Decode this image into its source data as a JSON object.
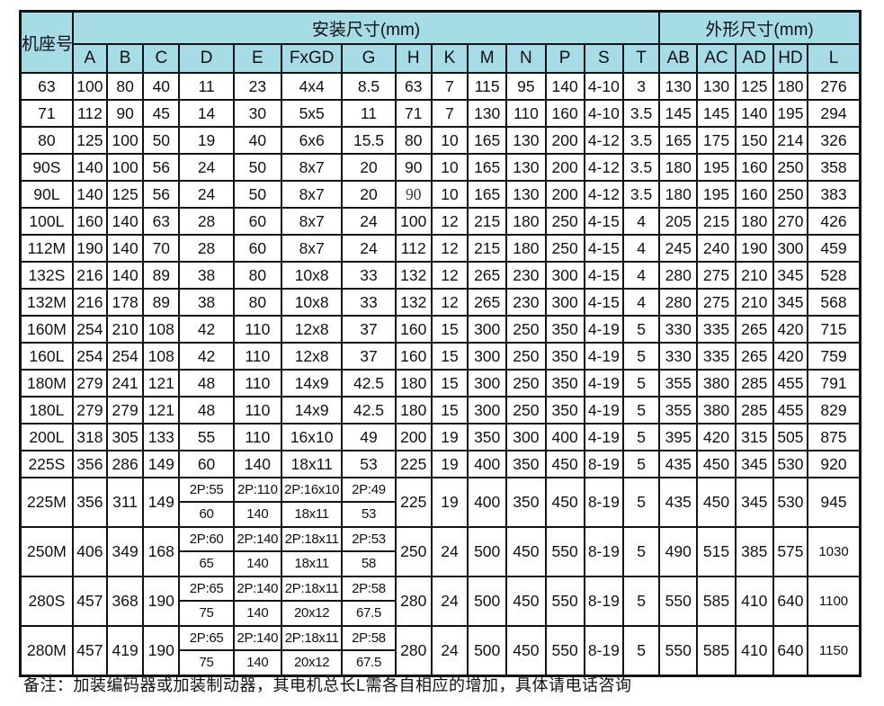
{
  "colors": {
    "header_bg": "#a6dce5",
    "grid_line": "#101417",
    "page_bg": "#ffffff",
    "text": "#111111"
  },
  "table": {
    "corner_label": "机座号",
    "groups": [
      {
        "label": "安装尺寸(mm)",
        "span": 14
      },
      {
        "label": "外形尺寸(mm)",
        "span": 5
      }
    ],
    "columns": [
      "A",
      "B",
      "C",
      "D",
      "E",
      "FxGD",
      "G",
      "H",
      "K",
      "M",
      "N",
      "P",
      "S",
      "T",
      "AB",
      "AC",
      "AD",
      "HD",
      "L"
    ],
    "rows": [
      {
        "frame": "63",
        "cells": [
          "100",
          "80",
          "40",
          "11",
          "23",
          "4x4",
          "8.5",
          "63",
          "7",
          "115",
          "95",
          "140",
          "4-10",
          "3",
          "130",
          "130",
          "125",
          "180",
          "276"
        ]
      },
      {
        "frame": "71",
        "cells": [
          "112",
          "90",
          "45",
          "14",
          "30",
          "5x5",
          "11",
          "71",
          "7",
          "130",
          "110",
          "160",
          "4-10",
          "3.5",
          "145",
          "145",
          "140",
          "195",
          "294"
        ]
      },
      {
        "frame": "80",
        "cells": [
          "125",
          "100",
          "50",
          "19",
          "40",
          "6x6",
          "15.5",
          "80",
          "10",
          "165",
          "130",
          "200",
          "4-12",
          "3.5",
          "165",
          "175",
          "150",
          "214",
          "326"
        ]
      },
      {
        "frame": "90S",
        "cells": [
          "140",
          "100",
          "56",
          "24",
          "50",
          "8x7",
          "20",
          "90",
          "10",
          "165",
          "130",
          "200",
          "4-12",
          "3.5",
          "180",
          "195",
          "160",
          "250",
          "358"
        ]
      },
      {
        "frame": "90L",
        "cells": [
          "140",
          "125",
          "56",
          "24",
          "50",
          "8x7",
          "20",
          {
            "v": "90",
            "serif": true
          },
          "10",
          "165",
          "130",
          "200",
          "4-12",
          "3.5",
          "180",
          "195",
          "160",
          "250",
          "383"
        ]
      },
      {
        "frame": "100L",
        "cells": [
          "160",
          "140",
          "63",
          "28",
          "60",
          "8x7",
          "24",
          "100",
          "12",
          "215",
          "180",
          "250",
          "4-15",
          "4",
          "205",
          "215",
          "180",
          "270",
          "426"
        ]
      },
      {
        "frame": "112M",
        "cells": [
          "190",
          "140",
          "70",
          "28",
          "60",
          "8x7",
          "24",
          "112",
          "12",
          "215",
          "180",
          "250",
          "4-15",
          "4",
          "245",
          "240",
          "190",
          "300",
          "459"
        ]
      },
      {
        "frame": "132S",
        "cells": [
          "216",
          "140",
          "89",
          "38",
          "80",
          "10x8",
          "33",
          "132",
          "12",
          "265",
          "230",
          "300",
          "4-15",
          "4",
          "280",
          "275",
          "210",
          "345",
          "528"
        ]
      },
      {
        "frame": "132M",
        "cells": [
          "216",
          "178",
          "89",
          "38",
          "80",
          "10x8",
          "33",
          "132",
          "12",
          "265",
          "230",
          "300",
          "4-15",
          "4",
          "280",
          "275",
          "210",
          "345",
          "568"
        ]
      },
      {
        "frame": "160M",
        "cells": [
          "254",
          "210",
          "108",
          "42",
          "110",
          "12x8",
          "37",
          "160",
          "15",
          "300",
          "250",
          "350",
          "4-19",
          "5",
          "330",
          "335",
          "265",
          "420",
          "715"
        ]
      },
      {
        "frame": "160L",
        "cells": [
          "254",
          "254",
          "108",
          "42",
          "110",
          "12x8",
          "37",
          "160",
          "15",
          "300",
          "250",
          "350",
          "4-19",
          "5",
          "330",
          "335",
          "265",
          "420",
          "759"
        ]
      },
      {
        "frame": "180M",
        "cells": [
          "279",
          "241",
          "121",
          "48",
          "110",
          "14x9",
          "42.5",
          "180",
          "15",
          "300",
          "250",
          "350",
          "4-19",
          "5",
          "355",
          "380",
          "285",
          "455",
          "791"
        ]
      },
      {
        "frame": "180L",
        "cells": [
          "279",
          "279",
          "121",
          "48",
          "110",
          "14x9",
          "42.5",
          "180",
          "15",
          "300",
          "250",
          "350",
          "4-19",
          "5",
          "355",
          "380",
          "285",
          "455",
          "829"
        ]
      },
      {
        "frame": "200L",
        "cells": [
          "318",
          "305",
          "133",
          "55",
          "110",
          "16x10",
          "49",
          "200",
          "19",
          "350",
          "300",
          "400",
          "4-19",
          "5",
          "395",
          "420",
          "315",
          "505",
          "875"
        ]
      },
      {
        "frame": "225S",
        "cells": [
          "356",
          "286",
          "149",
          "60",
          "140",
          "18x11",
          "53",
          "225",
          "19",
          "400",
          "350",
          "450",
          "8-19",
          "5",
          "435",
          "450",
          "345",
          "530",
          "920"
        ]
      },
      {
        "frame": "225M",
        "tall": true,
        "cells": [
          "356",
          "311",
          "149",
          {
            "top": "2P:55",
            "bottom": "60"
          },
          {
            "top": "2P:110",
            "bottom": "140"
          },
          {
            "top": "2P:16x10",
            "bottom": "18x11"
          },
          {
            "top": "2P:49",
            "bottom": "53"
          },
          "225",
          "19",
          "400",
          "350",
          "450",
          "8-19",
          "5",
          "435",
          "450",
          "345",
          "530",
          "945"
        ]
      },
      {
        "frame": "250M",
        "tall": true,
        "cells": [
          "406",
          "349",
          "168",
          {
            "top": "2P:60",
            "bottom": "65"
          },
          {
            "top": "2P:140",
            "bottom": "140"
          },
          {
            "top": "2P:18x11",
            "bottom": "18x11"
          },
          {
            "top": "2P:53",
            "bottom": "58"
          },
          "250",
          "24",
          "500",
          "450",
          "550",
          "8-19",
          "5",
          "490",
          "515",
          "385",
          "575",
          {
            "v": "1030",
            "small": true
          }
        ]
      },
      {
        "frame": "280S",
        "tall": true,
        "cells": [
          "457",
          "368",
          "190",
          {
            "top": "2P:65",
            "bottom": "75"
          },
          {
            "top": "2P:140",
            "bottom": "140"
          },
          {
            "top": "2P:18x11",
            "bottom": "20x12"
          },
          {
            "top": "2P:58",
            "bottom": "67.5"
          },
          "280",
          "24",
          "500",
          "450",
          "550",
          "8-19",
          "5",
          "550",
          "585",
          "410",
          "640",
          {
            "v": "1100",
            "small": true
          }
        ]
      },
      {
        "frame": "280M",
        "tall": true,
        "cells": [
          "457",
          "419",
          "190",
          {
            "top": "2P:65",
            "bottom": "75"
          },
          {
            "top": "2P:140",
            "bottom": "140"
          },
          {
            "top": "2P:18x11",
            "bottom": "20x12"
          },
          {
            "top": "2P:58",
            "bottom": "67.5"
          },
          "280",
          "24",
          "500",
          "450",
          "550",
          "8-19",
          "5",
          "550",
          "585",
          "410",
          "640",
          {
            "v": "1150",
            "small": true
          }
        ]
      }
    ]
  },
  "note": "备注：加装编码器或加装制动器，其电机总长L需各自相应的增加，具体请电话咨询"
}
